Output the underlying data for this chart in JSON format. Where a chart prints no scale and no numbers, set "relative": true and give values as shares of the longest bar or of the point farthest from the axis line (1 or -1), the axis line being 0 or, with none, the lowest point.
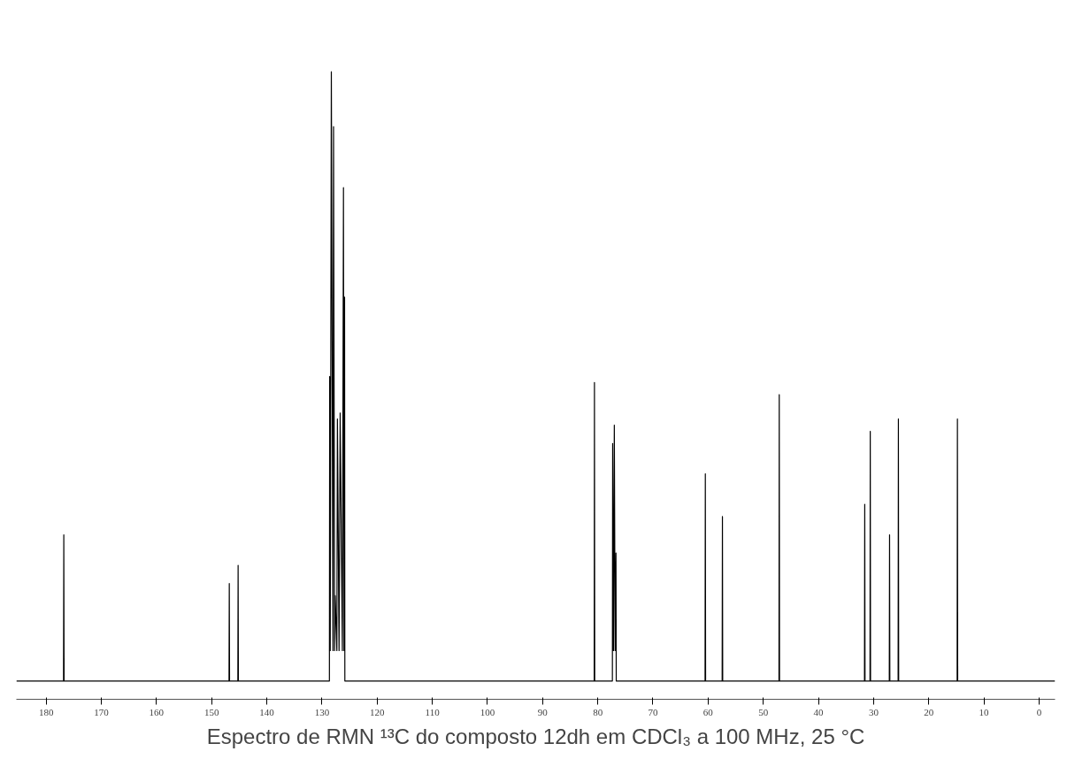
{
  "chart_data": {
    "type": "line",
    "relative": true,
    "title": "Espectro de RMN ¹³C do composto 12dh em CDCl₃ a 100 MHz, 25 °C",
    "xlim": [
      185.4,
      -2.9
    ],
    "xticks": [
      180,
      170,
      160,
      150,
      140,
      130,
      120,
      110,
      100,
      90,
      80,
      70,
      60,
      50,
      40,
      30,
      20,
      10,
      0
    ],
    "grid": false,
    "marker": "none",
    "line_style": "solid",
    "series": [
      {
        "color": "#000000",
        "x": [
          185.4,
          176.85,
          176.8,
          176.75,
          146.85,
          146.8,
          146.75,
          145.25,
          145.2,
          145.15,
          128.65,
          128.6,
          128.5,
          128.3,
          128.0,
          127.9,
          127.7,
          127.6,
          127.3,
          127.2,
          126.9,
          126.7,
          126.3,
          126.1,
          126.0,
          125.9,
          125.85,
          80.65,
          80.6,
          80.55,
          77.35,
          77.3,
          77.15,
          77.0,
          76.85,
          76.7,
          76.65,
          60.55,
          60.5,
          60.45,
          57.45,
          57.4,
          57.35,
          47.15,
          47.1,
          47.05,
          31.65,
          31.6,
          31.55,
          30.65,
          30.6,
          30.55,
          27.15,
          27.1,
          27.05,
          25.55,
          25.5,
          25.45,
          14.85,
          14.8,
          14.75,
          -2.9
        ],
        "values": [
          0,
          0,
          0.24,
          0,
          0,
          0.16,
          0,
          0,
          0.19,
          0,
          0,
          0.5,
          0.05,
          1,
          0.05,
          0.91,
          0.05,
          0.14,
          0.05,
          0.43,
          0.05,
          0.44,
          0.05,
          0.81,
          0.05,
          0.63,
          0,
          0,
          0.49,
          0,
          0,
          0.39,
          0.05,
          0.42,
          0.05,
          0.21,
          0,
          0,
          0.34,
          0,
          0,
          0.27,
          0,
          0,
          0.47,
          0,
          0,
          0.29,
          0,
          0,
          0.41,
          0,
          0,
          0.24,
          0,
          0,
          0.43,
          0,
          0,
          0.43,
          0,
          0
        ]
      }
    ]
  }
}
